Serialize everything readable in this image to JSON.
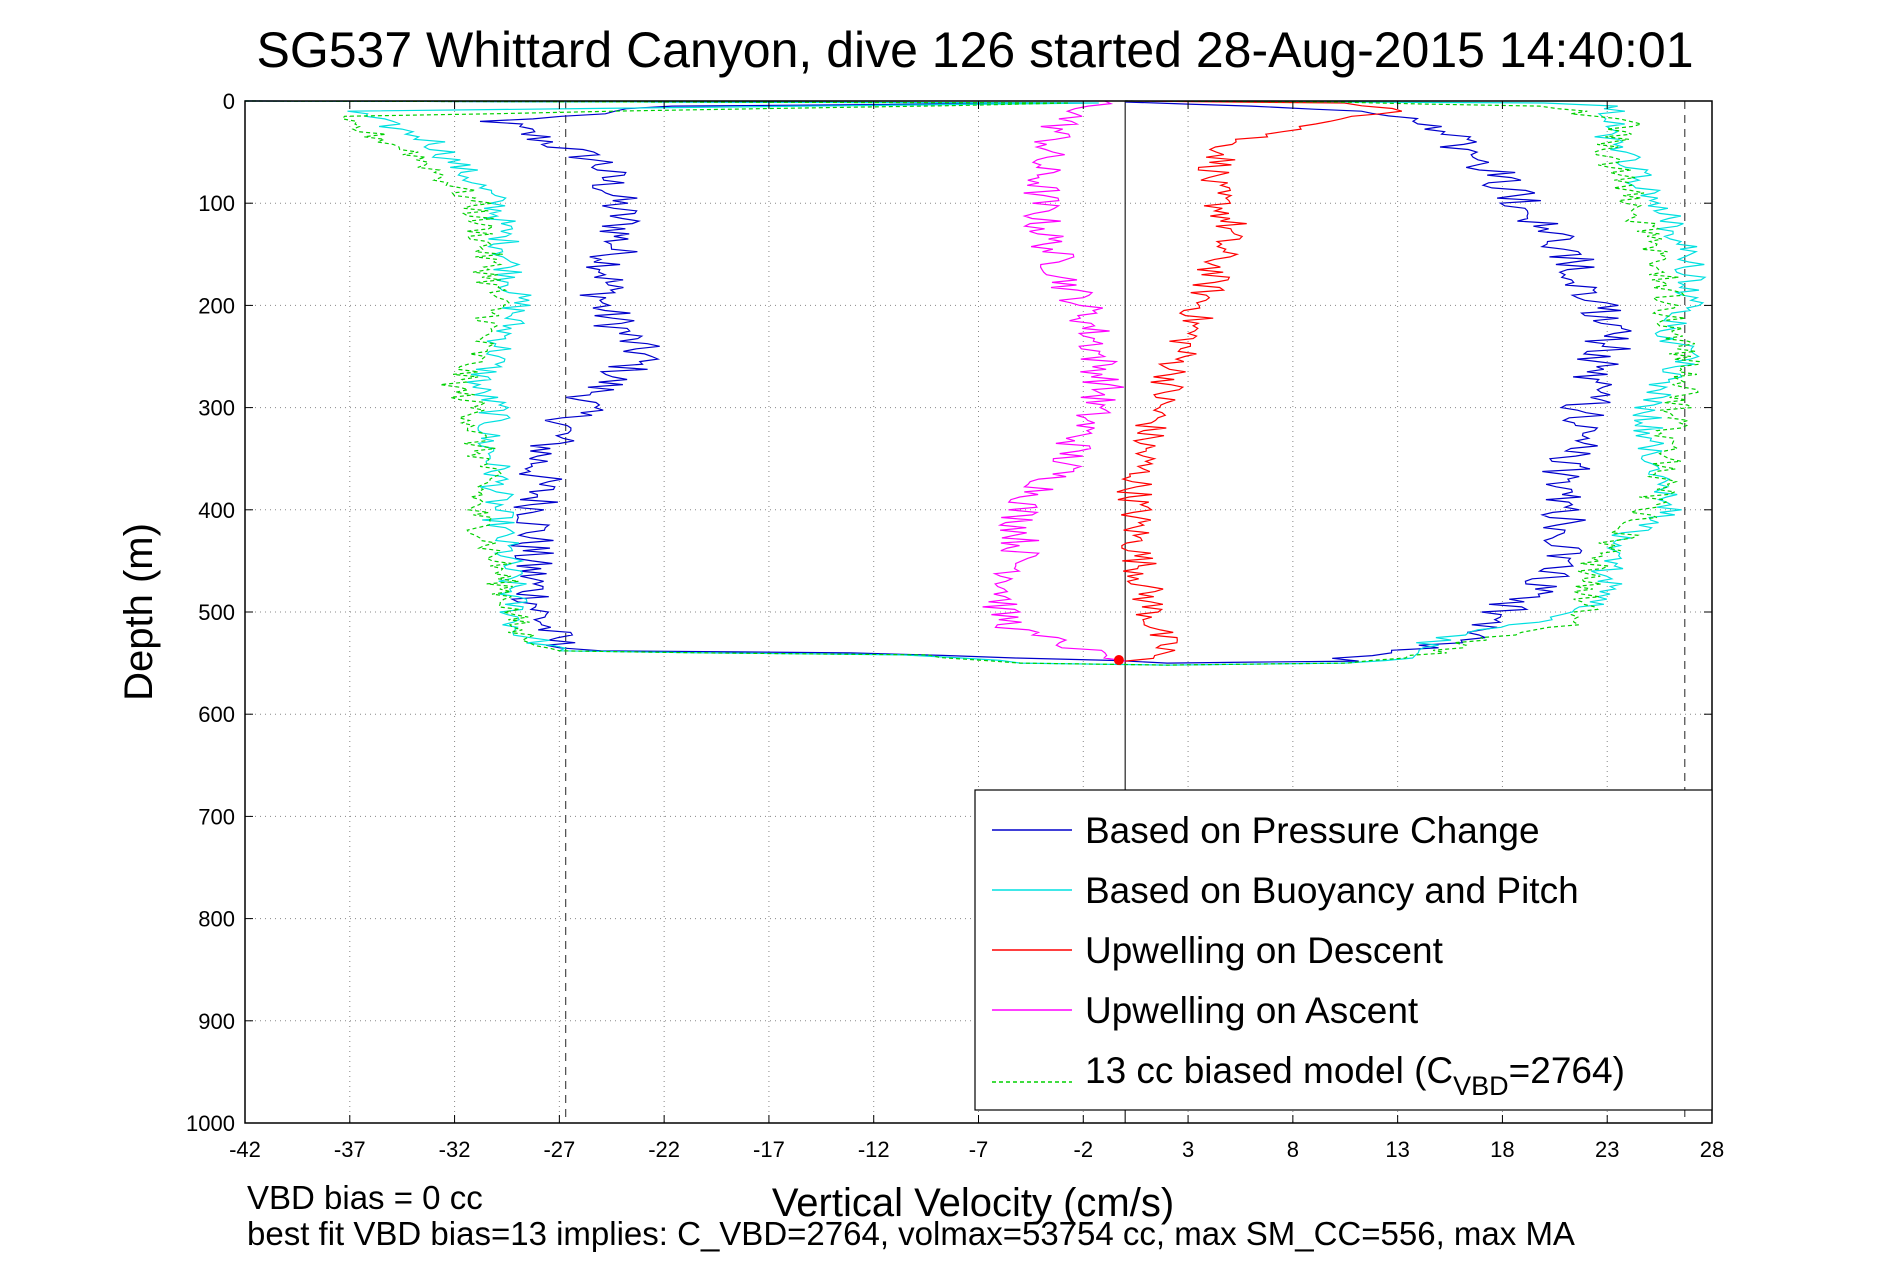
{
  "chart_data": {
    "type": "line",
    "title": "SG537 Whittard Canyon, dive 126 started 28-Aug-2015 14:40:01",
    "xlabel": "Vertical Velocity (cm/s)",
    "ylabel": "Depth (m)",
    "xlim": [
      -42,
      28
    ],
    "ylim": [
      0,
      1000
    ],
    "y_reversed": true,
    "xticks": [
      "-42",
      "-37",
      "-32",
      "-27",
      "-22",
      "-17",
      "-12",
      "-7",
      "-2",
      "3",
      "8",
      "13",
      "18",
      "23",
      "28"
    ],
    "yticks": [
      "0",
      "100",
      "200",
      "300",
      "400",
      "500",
      "600",
      "700",
      "800",
      "900",
      "1000"
    ],
    "grid": true,
    "legend_position": "bottom-right",
    "reference_lines": [
      {
        "x": -26.7,
        "style": "dashed",
        "color": "#555555"
      },
      {
        "x": 0,
        "style": "solid",
        "color": "#333333"
      },
      {
        "x": 26.7,
        "style": "dashed",
        "color": "#555555"
      }
    ],
    "series": [
      {
        "name": "Based on Pressure Change",
        "color": "#0000cc",
        "noise": 1.2,
        "x": [
          -42,
          -2,
          -22,
          -30,
          -25,
          -24,
          -25,
          -23,
          -25,
          -26,
          -28,
          -28,
          -28.5,
          -28,
          -27.5,
          -27,
          -25,
          -12,
          -5,
          2,
          10,
          13,
          16,
          18,
          20,
          21,
          21,
          21,
          21,
          22,
          22,
          23,
          23,
          22,
          21,
          19,
          17,
          15,
          12,
          9,
          6,
          3,
          0
        ],
        "y": [
          0,
          2,
          5,
          20,
          60,
          120,
          200,
          250,
          280,
          300,
          350,
          400,
          450,
          500,
          520,
          535,
          538,
          540,
          545,
          550,
          548,
          540,
          525,
          500,
          470,
          440,
          410,
          380,
          350,
          320,
          280,
          240,
          210,
          180,
          140,
          100,
          60,
          25,
          12,
          8,
          5,
          3,
          1
        ]
      },
      {
        "name": "Based on Buoyancy and Pitch",
        "color": "#00e0e0",
        "noise": 0.8,
        "x": [
          -42,
          -2,
          -37,
          -33,
          -30,
          -29,
          -30,
          -31,
          -30,
          -30.5,
          -30,
          -30,
          -29.5,
          -29,
          -27,
          -20,
          -10,
          -5,
          2,
          10,
          14,
          14.5,
          16,
          19,
          22,
          23,
          23,
          23,
          25,
          26,
          26,
          25,
          25,
          26,
          27,
          26,
          27,
          27,
          26,
          25,
          24,
          23,
          23.5,
          20,
          10,
          0
        ],
        "y": [
          0,
          2,
          10,
          40,
          100,
          200,
          250,
          280,
          300,
          330,
          360,
          400,
          450,
          520,
          538,
          540,
          542,
          550,
          552,
          550,
          545,
          530,
          520,
          510,
          500,
          480,
          450,
          430,
          420,
          400,
          380,
          350,
          300,
          270,
          250,
          230,
          200,
          160,
          120,
          90,
          60,
          30,
          5,
          2,
          1,
          0
        ]
      },
      {
        "name": "Upwelling on Descent",
        "color": "#ff0000",
        "noise": 0.9,
        "x": [
          0,
          10,
          13,
          5,
          4,
          5,
          4,
          3,
          2,
          1,
          0.5,
          0.5,
          1,
          1.5,
          2,
          0
        ],
        "y": [
          0,
          2,
          10,
          40,
          80,
          120,
          180,
          230,
          280,
          330,
          380,
          430,
          480,
          520,
          540,
          548
        ]
      },
      {
        "name": "Upwelling on Ascent",
        "color": "#ff00ff",
        "noise": 1.0,
        "x": [
          -1,
          -3,
          -4,
          -4,
          -3,
          -2,
          -1.5,
          -1,
          -2,
          -3,
          -5,
          -5,
          -6,
          -5,
          -3,
          -1,
          0
        ],
        "y": [
          0,
          20,
          60,
          120,
          170,
          200,
          230,
          280,
          320,
          360,
          400,
          450,
          500,
          520,
          530,
          545,
          548
        ]
      },
      {
        "name": "13 cc biased model (C",
        "name_sub": "VBD",
        "name_suffix": "=2764)",
        "color": "#00d000",
        "dashed": true,
        "noise": 0.8,
        "x": [
          -42,
          -2,
          -38,
          -34,
          -31,
          -30,
          -31,
          -32,
          -31,
          -31,
          -30.5,
          -31,
          -30,
          -29,
          -27,
          -20,
          -10,
          -5,
          2,
          10,
          14,
          16,
          19,
          22,
          22,
          22.5,
          24,
          25,
          25.5,
          26,
          27,
          26,
          26,
          25,
          24,
          23,
          24,
          20,
          10,
          0
        ],
        "y": [
          0,
          2,
          15,
          50,
          100,
          200,
          250,
          280,
          300,
          330,
          360,
          400,
          450,
          520,
          538,
          540,
          542,
          550,
          552,
          550,
          545,
          530,
          520,
          510,
          480,
          450,
          420,
          400,
          380,
          320,
          260,
          220,
          180,
          140,
          90,
          50,
          20,
          5,
          1,
          0
        ]
      }
    ],
    "markers": [
      {
        "x": -0.3,
        "y": 547,
        "color": "#ff0000"
      }
    ]
  },
  "annotations": {
    "vbd_bias": "VBD bias = 0 cc",
    "best_fit": "best fit VBD bias=13 implies: C_VBD=2764, volmax=53754 cc, max SM_CC=556, max MA"
  }
}
